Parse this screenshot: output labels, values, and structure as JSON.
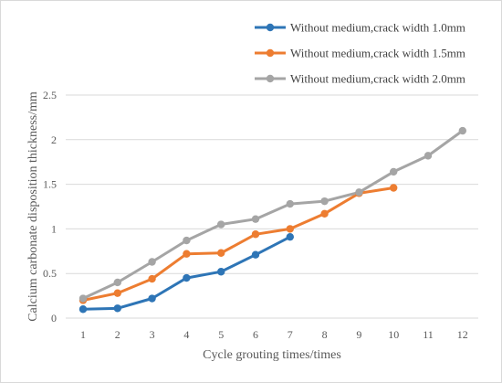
{
  "chart_data": {
    "type": "line",
    "title": "",
    "xlabel": "Cycle grouting times/times",
    "ylabel": "Calcium carbonate disposition thickness/mm",
    "x": [
      1,
      2,
      3,
      4,
      5,
      6,
      7,
      8,
      9,
      10,
      11,
      12
    ],
    "xlim": [
      1,
      12
    ],
    "ylim": [
      0,
      2.5
    ],
    "yticks": [
      0,
      0.5,
      1,
      1.5,
      2,
      2.5
    ],
    "ytick_labels": [
      "0",
      "0.5",
      "1",
      "1.5",
      "2",
      "2.5"
    ],
    "grid": "horizontal",
    "legend_position": "top-right",
    "series": [
      {
        "name": "Without medium,crack width 1.0mm",
        "color": "#2e75b6",
        "x": [
          1,
          2,
          3,
          4,
          5,
          6,
          7
        ],
        "values": [
          0.1,
          0.11,
          0.22,
          0.45,
          0.52,
          0.71,
          0.91
        ]
      },
      {
        "name": "Without medium,crack width 1.5mm",
        "color": "#ed7d31",
        "x": [
          1,
          2,
          3,
          4,
          5,
          6,
          7,
          8,
          9,
          10
        ],
        "values": [
          0.2,
          0.28,
          0.44,
          0.72,
          0.73,
          0.94,
          1.0,
          1.17,
          1.4,
          1.46
        ]
      },
      {
        "name": "Without medium,crack width 2.0mm",
        "color": "#a5a5a5",
        "x": [
          1,
          2,
          3,
          4,
          5,
          6,
          7,
          8,
          9,
          10,
          11,
          12
        ],
        "values": [
          0.22,
          0.4,
          0.63,
          0.87,
          1.05,
          1.11,
          1.28,
          1.31,
          1.41,
          1.64,
          1.82,
          2.1
        ]
      }
    ]
  }
}
